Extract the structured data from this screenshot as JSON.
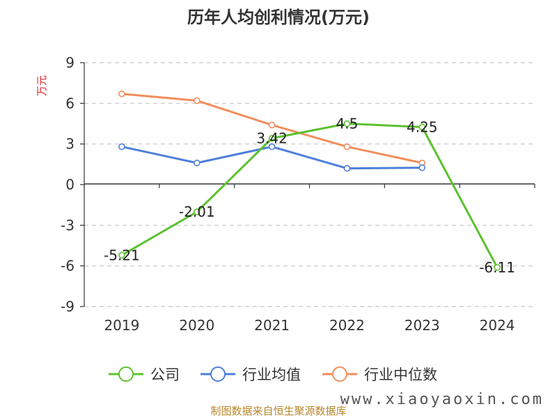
{
  "chart_data": {
    "type": "line",
    "title": "历年人均创利情况(万元)",
    "ylabel": "万元",
    "xlabel": "",
    "categories": [
      "2019",
      "2020",
      "2021",
      "2022",
      "2023",
      "2024"
    ],
    "ylim": [
      -9,
      9
    ],
    "yticks": [
      "9",
      "6",
      "3",
      "0",
      "-3",
      "-6",
      "-9"
    ],
    "grid": true,
    "legend_position": "bottom",
    "series": [
      {
        "name": "公司",
        "color": "#5cc12f",
        "values": [
          -5.21,
          -2.01,
          3.42,
          4.5,
          4.25,
          -6.11
        ],
        "labels": [
          "-5.21",
          "-2.01",
          "3.42",
          "4.5",
          "4.25",
          "-6.11"
        ]
      },
      {
        "name": "行业均值",
        "color": "#4e7fd9",
        "values": [
          2.8,
          1.6,
          2.8,
          1.2,
          1.25,
          null
        ]
      },
      {
        "name": "行业中位数",
        "color": "#f28e5c",
        "values": [
          6.7,
          6.2,
          4.4,
          2.8,
          1.6,
          null
        ]
      }
    ]
  },
  "source_text": "制图数据来自恒生聚源数据库",
  "watermark_text": "www.xiaoyaoxin.com"
}
